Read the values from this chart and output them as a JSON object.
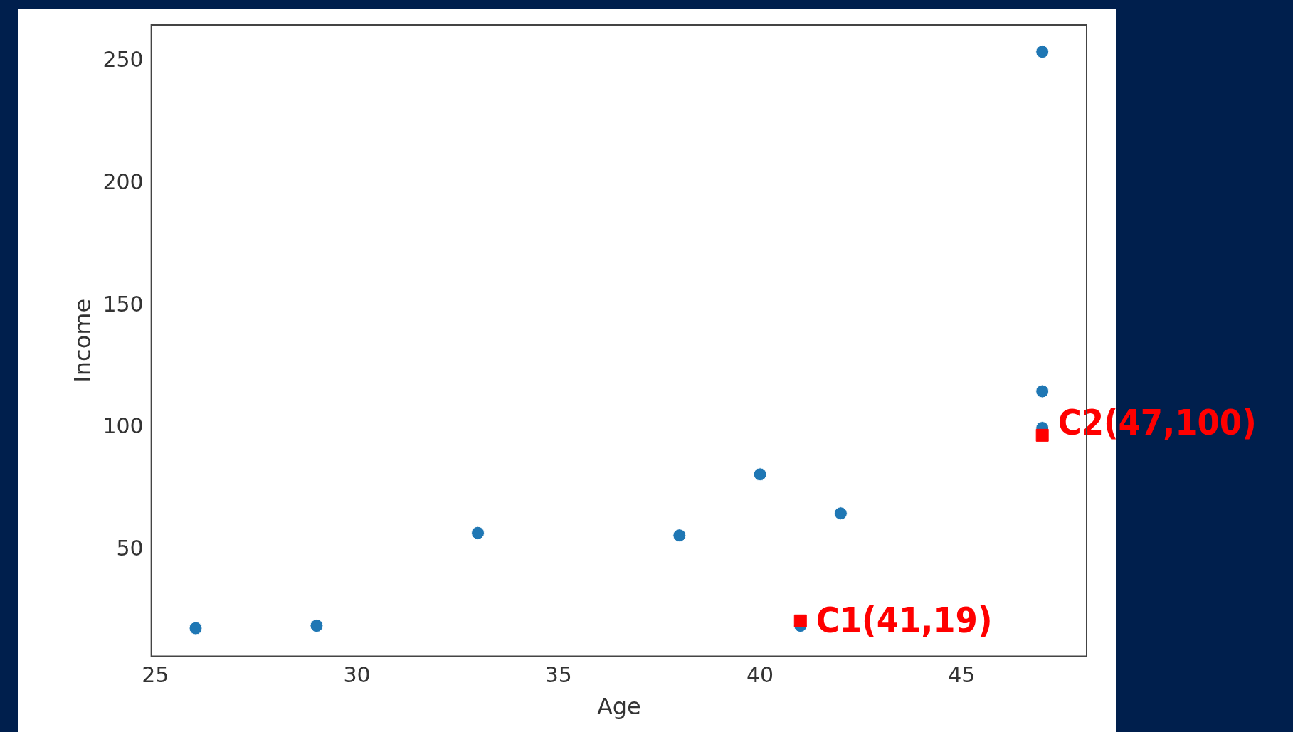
{
  "chart_data": {
    "type": "scatter",
    "xlabel": "Age",
    "ylabel": "Income",
    "series": [
      {
        "color": "#1f77b4",
        "x": [
          26,
          29,
          33,
          38,
          40,
          41,
          42,
          47,
          47,
          47
        ],
        "values": [
          18,
          19,
          57,
          56,
          81,
          19,
          65,
          100,
          115,
          254
        ],
        "marker": "circle"
      },
      {
        "color": "#ff0000",
        "x": [
          41,
          47
        ],
        "values": [
          21,
          97
        ],
        "marker": "square"
      }
    ],
    "annotations": [
      {
        "text": "C1(41,19)",
        "x": 41,
        "y": 19
      },
      {
        "text": "C2(47,100)",
        "x": 47,
        "y": 100
      }
    ],
    "xlim": [
      24.9,
      48.1
    ],
    "ylim": [
      6.5,
      265
    ],
    "xticks": [
      25,
      30,
      35,
      40,
      45
    ],
    "yticks": [
      50,
      100,
      150,
      200,
      250
    ],
    "grid": false,
    "legend": false
  }
}
